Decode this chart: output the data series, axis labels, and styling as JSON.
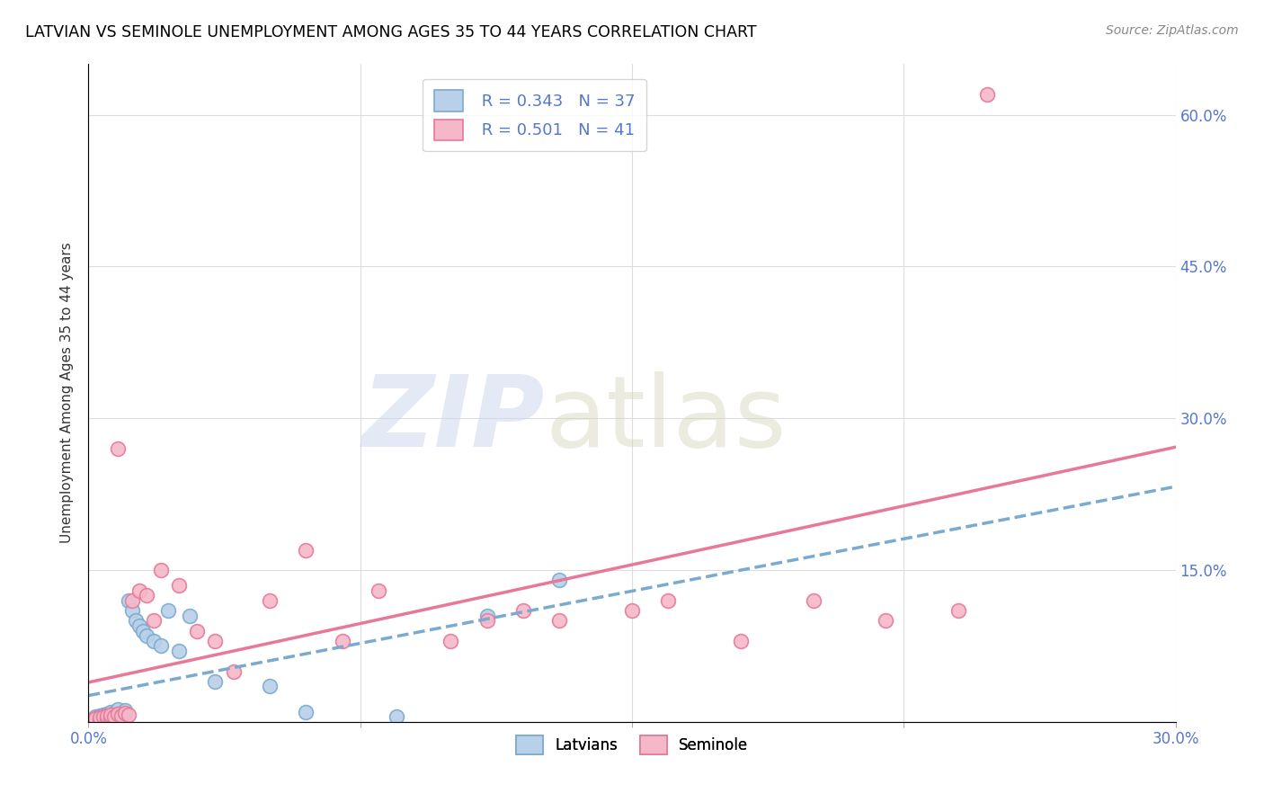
{
  "title": "LATVIAN VS SEMINOLE UNEMPLOYMENT AMONG AGES 35 TO 44 YEARS CORRELATION CHART",
  "source": "Source: ZipAtlas.com",
  "ylabel": "Unemployment Among Ages 35 to 44 years",
  "xlim": [
    0.0,
    0.3
  ],
  "ylim": [
    0.0,
    0.65
  ],
  "latvian_fill": "#b8d0e8",
  "latvian_edge": "#7aaad0",
  "seminole_fill": "#f5b8c8",
  "seminole_edge": "#e87898",
  "latvian_line_color": "#7aaad0",
  "seminole_line_color": "#e87898",
  "legend_R_latvian": "0.343",
  "legend_N_latvian": "37",
  "legend_R_seminole": "0.501",
  "legend_N_seminole": "41",
  "background_color": "#ffffff",
  "grid_color": "#dddddd",
  "tick_color": "#5577cc",
  "lat_x": [
    0.0,
    0.001,
    0.001,
    0.002,
    0.002,
    0.002,
    0.003,
    0.003,
    0.004,
    0.004,
    0.005,
    0.005,
    0.006,
    0.006,
    0.007,
    0.007,
    0.008,
    0.008,
    0.009,
    0.01,
    0.011,
    0.012,
    0.013,
    0.014,
    0.015,
    0.016,
    0.018,
    0.02,
    0.022,
    0.025,
    0.028,
    0.035,
    0.05,
    0.06,
    0.085,
    0.11,
    0.13
  ],
  "lat_y": [
    0.0,
    0.0,
    0.002,
    0.001,
    0.003,
    0.005,
    0.002,
    0.006,
    0.004,
    0.007,
    0.003,
    0.008,
    0.005,
    0.01,
    0.006,
    0.009,
    0.005,
    0.012,
    0.008,
    0.011,
    0.12,
    0.11,
    0.1,
    0.095,
    0.09,
    0.085,
    0.08,
    0.075,
    0.11,
    0.07,
    0.105,
    0.04,
    0.035,
    0.01,
    0.005,
    0.105,
    0.14
  ],
  "sem_x": [
    0.0,
    0.001,
    0.001,
    0.002,
    0.003,
    0.003,
    0.004,
    0.005,
    0.005,
    0.006,
    0.006,
    0.007,
    0.008,
    0.008,
    0.009,
    0.01,
    0.011,
    0.012,
    0.014,
    0.016,
    0.018,
    0.02,
    0.025,
    0.03,
    0.035,
    0.04,
    0.05,
    0.06,
    0.07,
    0.08,
    0.1,
    0.11,
    0.12,
    0.13,
    0.15,
    0.16,
    0.18,
    0.2,
    0.22,
    0.24,
    0.248
  ],
  "sem_y": [
    0.0,
    0.001,
    0.002,
    0.003,
    0.002,
    0.004,
    0.005,
    0.003,
    0.006,
    0.004,
    0.007,
    0.005,
    0.008,
    0.27,
    0.006,
    0.009,
    0.007,
    0.12,
    0.13,
    0.125,
    0.1,
    0.15,
    0.135,
    0.09,
    0.08,
    0.05,
    0.12,
    0.17,
    0.08,
    0.13,
    0.08,
    0.1,
    0.11,
    0.1,
    0.11,
    0.12,
    0.08,
    0.12,
    0.1,
    0.11,
    0.62
  ],
  "lat_line_x": [
    0.0,
    0.3
  ],
  "lat_line_y": [
    0.001,
    0.245
  ],
  "sem_line_x": [
    0.0,
    0.3
  ],
  "sem_line_y": [
    0.001,
    0.3
  ]
}
